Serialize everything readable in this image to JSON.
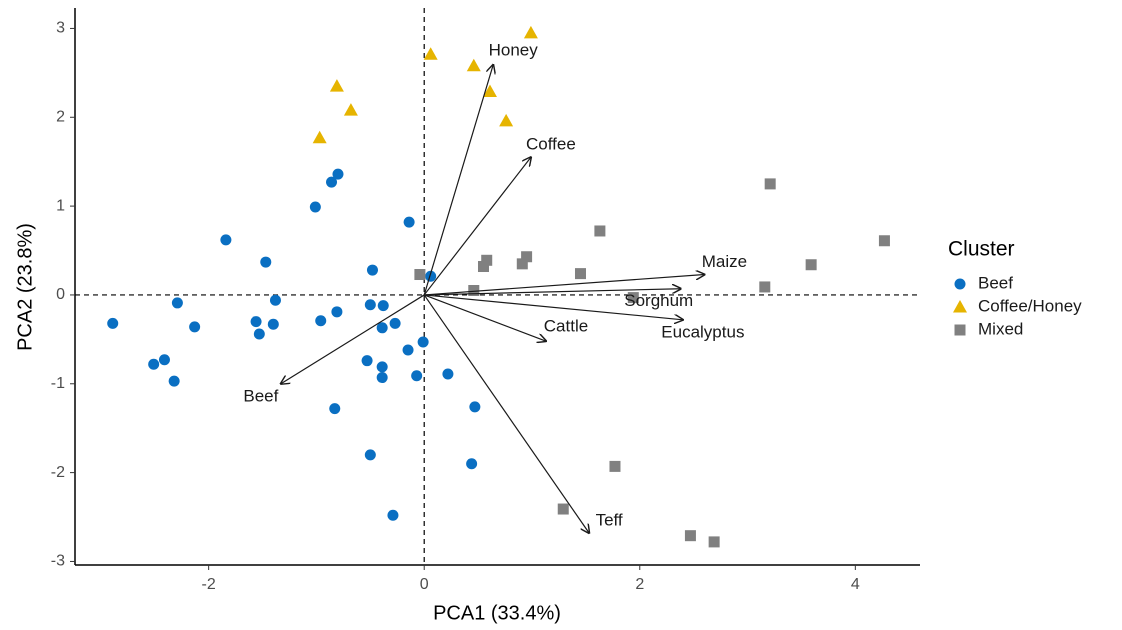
{
  "chart_data": {
    "type": "scatter",
    "x_label": "PCA1 (33.4%)",
    "y_label": "PCA2 (23.8%)",
    "xlim": [
      -3.24,
      4.6
    ],
    "ylim": [
      -3.04,
      3.23
    ],
    "xticks": [
      -2,
      0,
      2,
      4
    ],
    "yticks": [
      -3,
      -2,
      -1,
      0,
      1,
      2,
      3
    ],
    "grid": false,
    "legend_title": "Cluster",
    "legend_position": "right",
    "series": [
      {
        "name": "Beef",
        "color": "#0a6fc2",
        "marker": "circle",
        "x": [
          -2.89,
          -2.51,
          -2.41,
          -2.32,
          -2.29,
          -2.13,
          -1.84,
          -1.56,
          -1.53,
          -1.47,
          -1.4,
          -1.38,
          -1.01,
          -0.96,
          -0.86,
          -0.8,
          -0.81,
          -0.83,
          -0.5,
          -0.48,
          -0.5,
          -0.53,
          -0.39,
          -0.39,
          -0.39,
          -0.38,
          -0.27,
          -0.29,
          -0.15,
          -0.14,
          -0.07,
          -0.01,
          0.06,
          0.22,
          0.44,
          0.47
        ],
        "y": [
          -0.32,
          -0.78,
          -0.73,
          -0.97,
          -0.09,
          -0.36,
          0.62,
          -0.3,
          -0.44,
          0.37,
          -0.33,
          -0.06,
          0.99,
          -0.29,
          1.27,
          1.36,
          -0.19,
          -1.28,
          -1.8,
          0.28,
          -0.11,
          -0.74,
          -0.37,
          -0.81,
          -0.93,
          -0.12,
          -0.32,
          -2.48,
          -0.62,
          0.82,
          -0.91,
          -0.53,
          0.21,
          -0.89,
          -1.9,
          -1.26
        ]
      },
      {
        "name": "Coffee/Honey",
        "color": "#e6b400",
        "marker": "triangle",
        "x": [
          -0.97,
          -0.81,
          -0.68,
          0.06,
          0.46,
          0.61,
          0.76,
          0.99
        ],
        "y": [
          1.77,
          2.35,
          2.08,
          2.71,
          2.58,
          2.29,
          1.96,
          2.95
        ]
      },
      {
        "name": "Mixed",
        "color": "#808080",
        "marker": "square",
        "x": [
          -0.04,
          0.46,
          0.55,
          0.58,
          0.91,
          0.95,
          1.45,
          1.63,
          1.77,
          1.29,
          1.94,
          3.16,
          3.21,
          3.59,
          4.27,
          2.47,
          2.69
        ],
        "y": [
          0.23,
          0.05,
          0.32,
          0.39,
          0.35,
          0.43,
          0.24,
          0.72,
          -1.93,
          -2.41,
          -0.03,
          0.09,
          1.25,
          0.34,
          0.61,
          -2.71,
          -2.78
        ]
      }
    ],
    "loadings": [
      {
        "name": "Honey",
        "x": 0.64,
        "y": 2.59
      },
      {
        "name": "Coffee",
        "x": 0.99,
        "y": 1.55
      },
      {
        "name": "Maize",
        "x": 2.6,
        "y": 0.23
      },
      {
        "name": "Sorghum",
        "x": 2.38,
        "y": 0.07
      },
      {
        "name": "Eucalyptus",
        "x": 2.4,
        "y": -0.28
      },
      {
        "name": "Cattle",
        "x": 1.13,
        "y": -0.52
      },
      {
        "name": "Teff",
        "x": 1.53,
        "y": -2.68
      },
      {
        "name": "Beef",
        "x": -1.33,
        "y": -1.0
      }
    ]
  }
}
